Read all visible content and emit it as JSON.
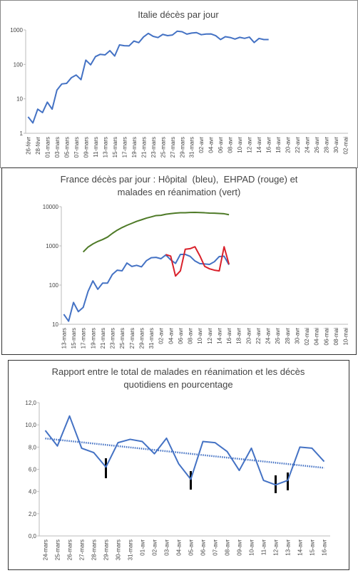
{
  "chart_data": [
    {
      "type": "line",
      "title": "Italie décès par jour",
      "log": true,
      "categories": [
        "26-févr",
        null,
        "28-févr",
        null,
        "01-mars",
        null,
        "03-mars",
        null,
        "05-mars",
        null,
        "07-mars",
        null,
        "09-mars",
        null,
        "11-mars",
        null,
        "13-mars",
        null,
        "15-mars",
        null,
        "17-mars",
        null,
        "19-mars",
        null,
        "21-mars",
        null,
        "23-mars",
        null,
        "25-mars",
        null,
        "27-mars",
        null,
        "29-mars",
        null,
        "31-mars",
        null,
        "02-avr",
        null,
        "04-avr",
        null,
        "06-avr",
        null,
        "08-avr",
        null,
        "10-avr",
        null,
        "12-avr",
        null,
        "14-avr",
        null,
        "16-avr",
        null,
        "18-avr",
        null,
        "20-avr",
        null,
        "22-avr",
        null,
        "24-avr",
        null,
        "26-avr",
        null,
        "28-avr",
        null,
        "30-avr",
        null,
        "02-mai"
      ],
      "values": [
        3,
        2,
        5,
        4,
        8,
        5,
        18,
        27,
        28,
        41,
        49,
        36,
        133,
        97,
        168,
        196,
        189,
        250,
        175,
        368,
        349,
        345,
        475,
        427,
        627,
        793,
        651,
        601,
        743,
        683,
        712,
        919,
        889,
        756,
        812,
        837,
        727,
        760,
        766,
        681,
        525,
        636,
        604,
        542,
        610,
        570,
        619,
        431,
        566,
        525,
        525,
        null,
        null,
        null,
        null,
        null,
        null,
        null,
        null,
        null,
        null,
        null,
        null,
        null,
        null,
        null,
        null
      ],
      "color": "#4472c4",
      "ylim": [
        1,
        1000
      ],
      "yticks": [
        1,
        10,
        100,
        1000
      ]
    },
    {
      "type": "line",
      "title": "France décès par jour : Hôpital  (bleu),  EHPAD (rouge) et malades en réanimation (vert)",
      "log": true,
      "categories": [
        "13-mars",
        null,
        "15-mars",
        null,
        "17-mars",
        null,
        "19-mars",
        null,
        "21-mars",
        null,
        "23-mars",
        null,
        "25-mars",
        null,
        "27-mars",
        null,
        "29-mars",
        null,
        "31-mars",
        null,
        "02-avr",
        null,
        "04-avr",
        null,
        "06-avr",
        null,
        "08-avr",
        null,
        "10-avr",
        null,
        "12-avr",
        null,
        "14-avr",
        null,
        "16-avr",
        null,
        "18-avr",
        null,
        "20-avr",
        null,
        "22-avr",
        null,
        "24-avr",
        null,
        "26-avr",
        null,
        "28-avr",
        null,
        "30-avr",
        null,
        "02-mai",
        null,
        "04-mai",
        null,
        "06-mai",
        null,
        "08-mai",
        null,
        "10-mai"
      ],
      "series": [
        {
          "color": "#4472c4",
          "values": [
            18,
            12,
            36,
            21,
            27,
            69,
            128,
            78,
            112,
            112,
            186,
            240,
            231,
            365,
            299,
            319,
            292,
            418,
            499,
            509,
            471,
            588,
            441,
            357,
            605,
            607,
            541,
            412,
            353,
            345,
            336,
            395,
            535,
            544,
            330,
            null,
            null,
            null,
            null,
            null,
            null,
            null,
            null,
            null,
            null,
            null,
            null,
            null,
            null,
            null,
            null,
            null,
            null,
            null,
            null,
            null,
            null,
            null,
            null
          ]
        },
        {
          "color": "#d9212b",
          "values": [
            null,
            null,
            null,
            null,
            null,
            null,
            null,
            null,
            null,
            null,
            null,
            null,
            null,
            null,
            null,
            null,
            null,
            null,
            null,
            null,
            null,
            600,
            550,
            170,
            230,
            820,
            850,
            950,
            560,
            300,
            260,
            240,
            230,
            950,
            340,
            null,
            null,
            null,
            null,
            null,
            null,
            null,
            null,
            null,
            null,
            null,
            null,
            null,
            null,
            null,
            null,
            null,
            null,
            null,
            null,
            null,
            null,
            null,
            null
          ]
        },
        {
          "color": "#4e7a27",
          "values": [
            null,
            null,
            null,
            null,
            699,
            931,
            1122,
            1297,
            1453,
            1674,
            2080,
            2516,
            2935,
            3351,
            3758,
            4236,
            4632,
            5107,
            5496,
            5940,
            6017,
            6399,
            6662,
            6872,
            7004,
            7019,
            7131,
            7148,
            7069,
            6988,
            6845,
            6821,
            6730,
            6599,
            6248,
            null,
            null,
            null,
            null,
            null,
            null,
            null,
            null,
            null,
            null,
            null,
            null,
            null,
            null,
            null,
            null,
            null,
            null,
            null,
            null,
            null,
            null,
            null,
            null
          ]
        }
      ],
      "ylim": [
        10,
        10000
      ],
      "yticks": [
        10,
        100,
        1000,
        10000
      ]
    },
    {
      "type": "line",
      "title": "Rapport entre le total de malades en réanimation et les décès quotidiens en pourcentage",
      "log": false,
      "categories": [
        "24-mars",
        "25-mars",
        "26-mars",
        "27-mars",
        "28-mars",
        "29-mars",
        "30-mars",
        "31-mars",
        "01-avr",
        "02-avr",
        "03-avr",
        "04-avr",
        "05-avr",
        "06-avr",
        "07-avr",
        "08-avr",
        "09-avr",
        "10-avr",
        "11-avr",
        "12-avr",
        "13-avr",
        "14-avr",
        "15-avr",
        "16-avr"
      ],
      "values": [
        9.5,
        8.1,
        10.8,
        7.9,
        7.5,
        6.2,
        8.4,
        8.7,
        8.5,
        7.4,
        8.8,
        6.5,
        5.1,
        8.5,
        8.4,
        7.6,
        5.9,
        7.9,
        5.0,
        4.6,
        5.0,
        8.0,
        7.9,
        6.7
      ],
      "color": "#4472c4",
      "trendline": true,
      "ylim": [
        0,
        12
      ],
      "yticks": [
        {
          "value": 0,
          "label": "0,0"
        },
        {
          "value": 2,
          "label": "2,0"
        },
        {
          "value": 4,
          "label": "4,0"
        },
        {
          "value": 6,
          "label": "6,0"
        },
        {
          "value": 8,
          "label": "8,0"
        },
        {
          "value": 10,
          "label": "10,0"
        },
        {
          "value": 12,
          "label": "12,0"
        }
      ]
    }
  ]
}
